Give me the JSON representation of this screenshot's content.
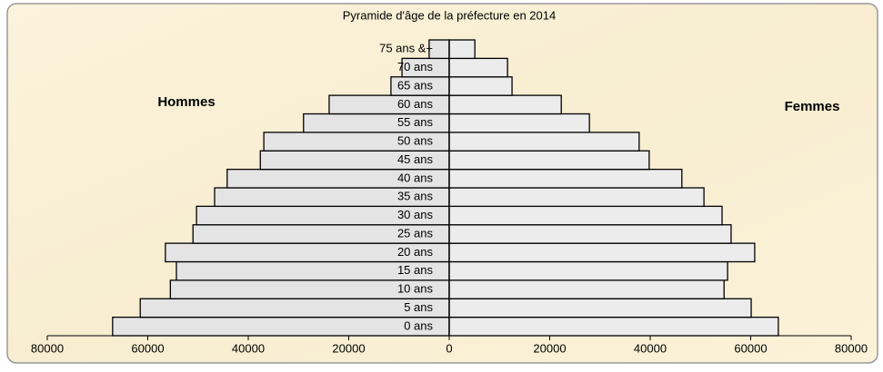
{
  "chart_data": {
    "type": "pyramid",
    "title": "Pyramide d'âge de la préfecture en 2014",
    "categories": [
      "0 ans",
      "5 ans",
      "10 ans",
      "15 ans",
      "20 ans",
      "25 ans",
      "30 ans",
      "35 ans",
      "40 ans",
      "45 ans",
      "50 ans",
      "55 ans",
      "60 ans",
      "65 ans",
      "70 ans",
      "75 ans &+"
    ],
    "series": [
      {
        "name": "Hommes",
        "color": "#e4e4e4",
        "values": [
          67000,
          61500,
          55500,
          54300,
          56500,
          51000,
          50300,
          46700,
          44200,
          37600,
          36900,
          29000,
          23900,
          11600,
          9400,
          4000
        ]
      },
      {
        "name": "Femmes",
        "color": "#ececec",
        "values": [
          65500,
          60100,
          54700,
          55400,
          60800,
          56100,
          54300,
          50700,
          46300,
          39800,
          37800,
          27900,
          22300,
          12500,
          11600,
          5100
        ]
      }
    ],
    "xlim": [
      -80000,
      80000
    ],
    "xticks": [
      {
        "value": -80000,
        "label": "80000"
      },
      {
        "value": -60000,
        "label": "60000"
      },
      {
        "value": -40000,
        "label": "40000"
      },
      {
        "value": -20000,
        "label": "20000"
      },
      0,
      20000,
      40000,
      60000,
      80000
    ]
  }
}
